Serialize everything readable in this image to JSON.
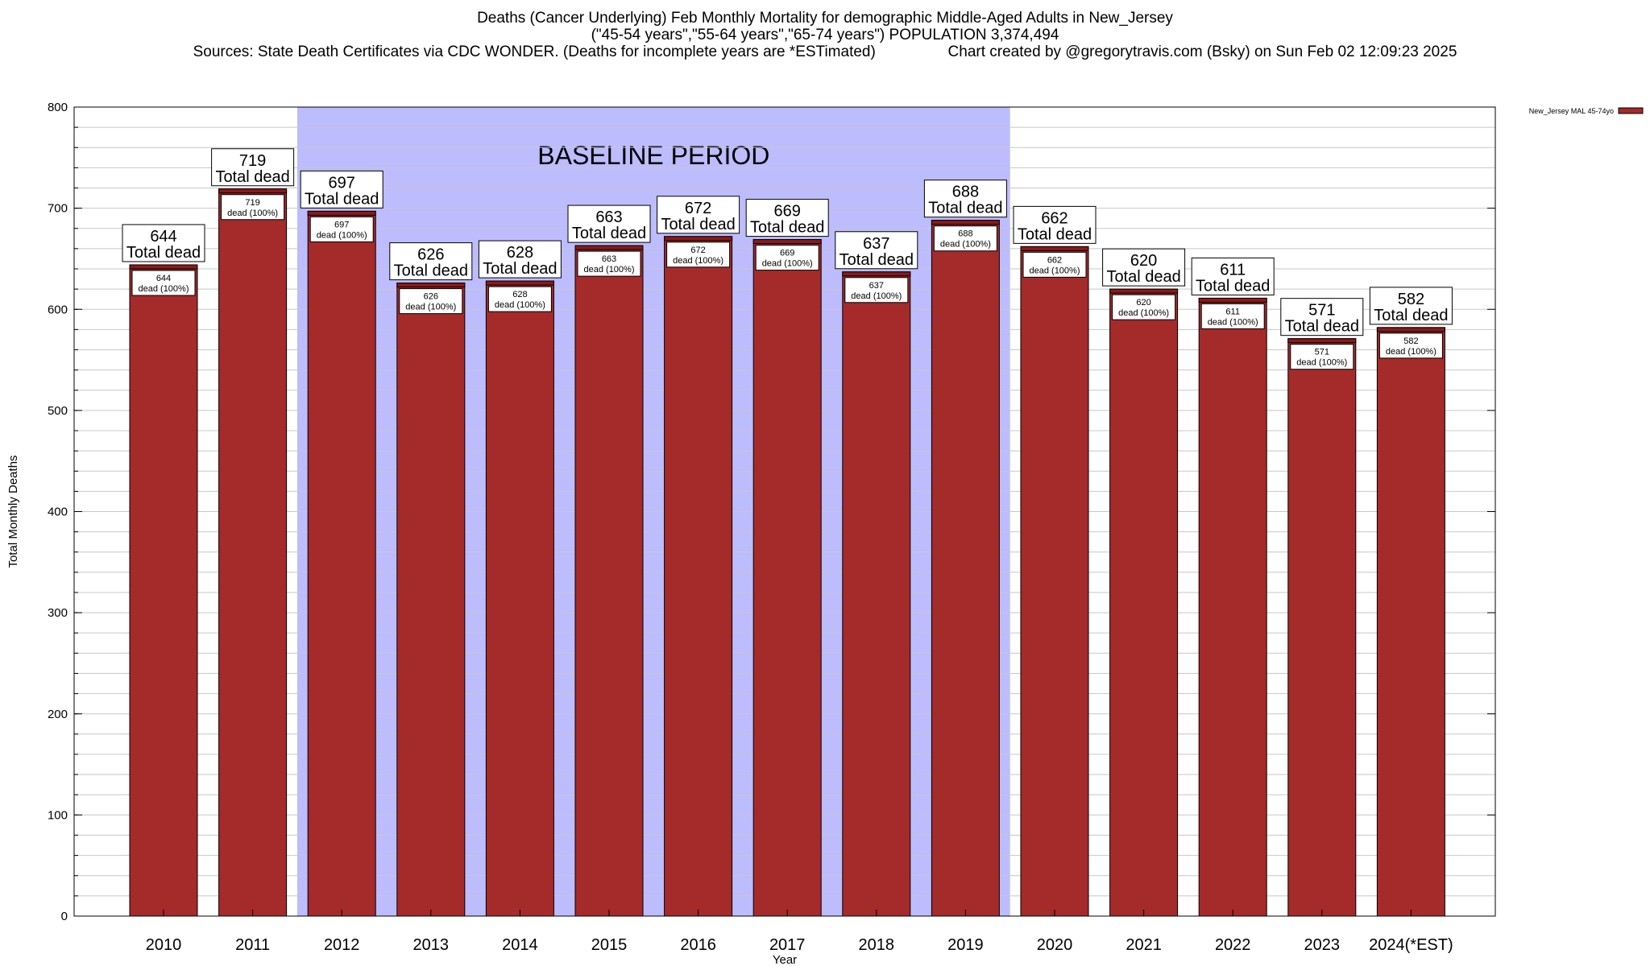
{
  "header": {
    "title_line1": "Deaths (Cancer Underlying) Feb Monthly Mortality for demographic Middle-Aged Adults in New_Jersey",
    "title_line2": "(\"45-54 years\",\"55-64 years\",\"65-74 years\") POPULATION 3,374,494",
    "title_line3": "Sources: State Death Certificates via CDC WONDER. (Deaths for incomplete years are *ESTimated)                 Chart created by @gregorytravis.com (Bsky) on Sun Feb 02 12:09:23 2025"
  },
  "chart_data": {
    "type": "bar",
    "categories": [
      "2010",
      "2011",
      "2012",
      "2013",
      "2014",
      "2015",
      "2016",
      "2017",
      "2018",
      "2019",
      "2020",
      "2021",
      "2022",
      "2023",
      "2024(*EST)"
    ],
    "series": [
      {
        "name": "New_Jersey MAL 45-74yo",
        "values": [
          644,
          719,
          697,
          626,
          628,
          663,
          672,
          669,
          637,
          688,
          662,
          620,
          611,
          571,
          582
        ]
      }
    ],
    "total_label": "Total dead",
    "inner_label": "dead (100%)",
    "xlabel": "Year",
    "ylabel": "Total Monthly Deaths",
    "ylim": [
      0,
      800
    ],
    "y_ticks": [
      0,
      100,
      200,
      300,
      400,
      500,
      600,
      700,
      800
    ],
    "minor_grid_step": 20,
    "grid": true,
    "legend_position": "top-right, outside plot",
    "baseline": {
      "label": "BASELINE PERIOD",
      "from": "2012",
      "to": "2019"
    },
    "colors": {
      "bar": "#a52a2a",
      "bar_cap": "#8b1a1a",
      "baseline_fill": "#bcbcff",
      "grid": "#c8c8c8"
    }
  }
}
